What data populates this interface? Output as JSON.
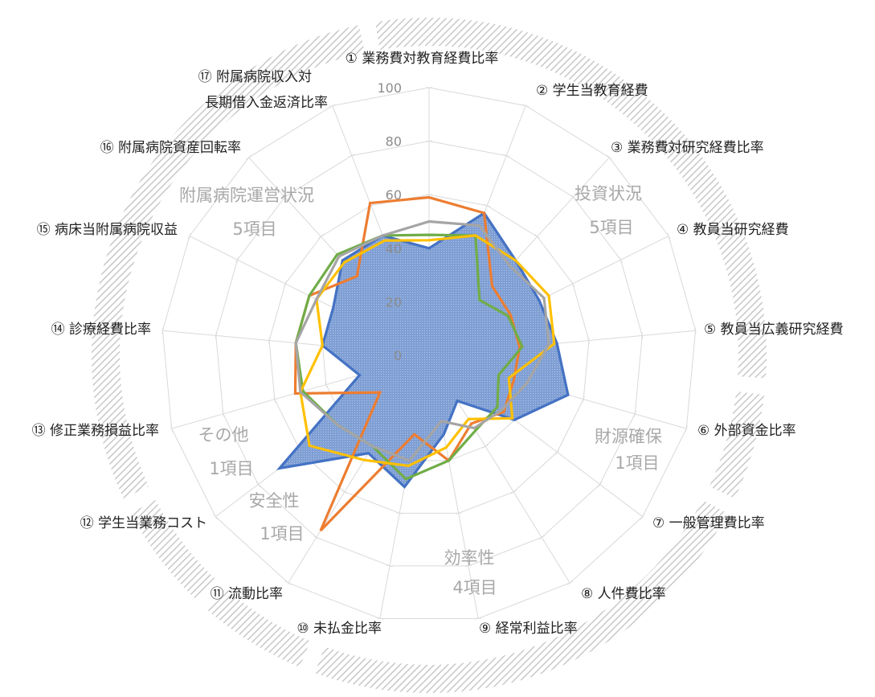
{
  "chart_data": {
    "type": "radar",
    "rlim": [
      0,
      100
    ],
    "ticks": [
      "0",
      "20",
      "40",
      "60",
      "80",
      "100"
    ],
    "grid": true,
    "legend": "none",
    "axes": [
      "① 業務費対教育経費比率",
      "② 学生当教育経費",
      "③ 業務費対研究経費比率",
      "④ 教員当研究経費",
      "⑤ 教員当広義研究経費",
      "⑥ 外部資金比率",
      "⑦ 一般管理費比率",
      "⑧ 人件費比率",
      "⑨ 経常利益比率",
      "⑩ 未払金比率",
      "⑪ 流動比率",
      "⑫ 学生当業務コスト",
      "⑬ 修正業務損益比率",
      "⑭ 診療経費比率",
      "⑮ 病床当附属病院収益",
      "⑯ 附属病院資産回転率",
      [
        "⑰ 附属病院収入対",
        "長期借入金返済比率"
      ]
    ],
    "groups": [
      {
        "label": [
          "投資状況",
          "5項目"
        ],
        "axes": [
          1,
          5
        ]
      },
      {
        "label": [
          "財源確保",
          "1項目"
        ],
        "axes": [
          6,
          6
        ]
      },
      {
        "label": [
          "効率性",
          "4項目"
        ],
        "axes": [
          7,
          10
        ]
      },
      {
        "label": [
          "安全性",
          "1項目"
        ],
        "axes": [
          11,
          11
        ]
      },
      {
        "label": [
          "その他",
          "1項目"
        ],
        "axes": [
          12,
          12
        ]
      },
      {
        "label": [
          "附属病院運営状況",
          "5項目"
        ],
        "axes": [
          13,
          17
        ]
      }
    ],
    "series": [
      {
        "color": "#4472c4",
        "filled": true,
        "values": [
          40,
          57,
          48,
          46,
          48,
          54,
          40,
          20,
          30,
          50,
          43,
          70,
          27,
          40,
          40,
          48,
          48
        ]
      },
      {
        "color": "#ed7d31",
        "filled": false,
        "values": [
          59,
          57,
          35,
          34,
          34,
          33,
          35,
          30,
          40,
          30,
          77,
          23,
          52,
          50,
          50,
          40,
          61
        ]
      },
      {
        "color": "#70ad47",
        "filled": false,
        "values": [
          45,
          48,
          28,
          33,
          35,
          27,
          32,
          33,
          40,
          47,
          40,
          43,
          49,
          50,
          50,
          51,
          48
        ]
      },
      {
        "color": "#ffc000",
        "filled": false,
        "values": [
          43,
          48,
          48,
          50,
          47,
          31,
          39,
          28,
          35,
          42,
          46,
          56,
          50,
          40,
          47,
          47,
          46
        ]
      },
      {
        "color": "#a5a5a5",
        "filled": false,
        "values": [
          50,
          52,
          45,
          48,
          45,
          38,
          34,
          32,
          25,
          40,
          40,
          43,
          50,
          50,
          47,
          50,
          48
        ]
      }
    ]
  }
}
